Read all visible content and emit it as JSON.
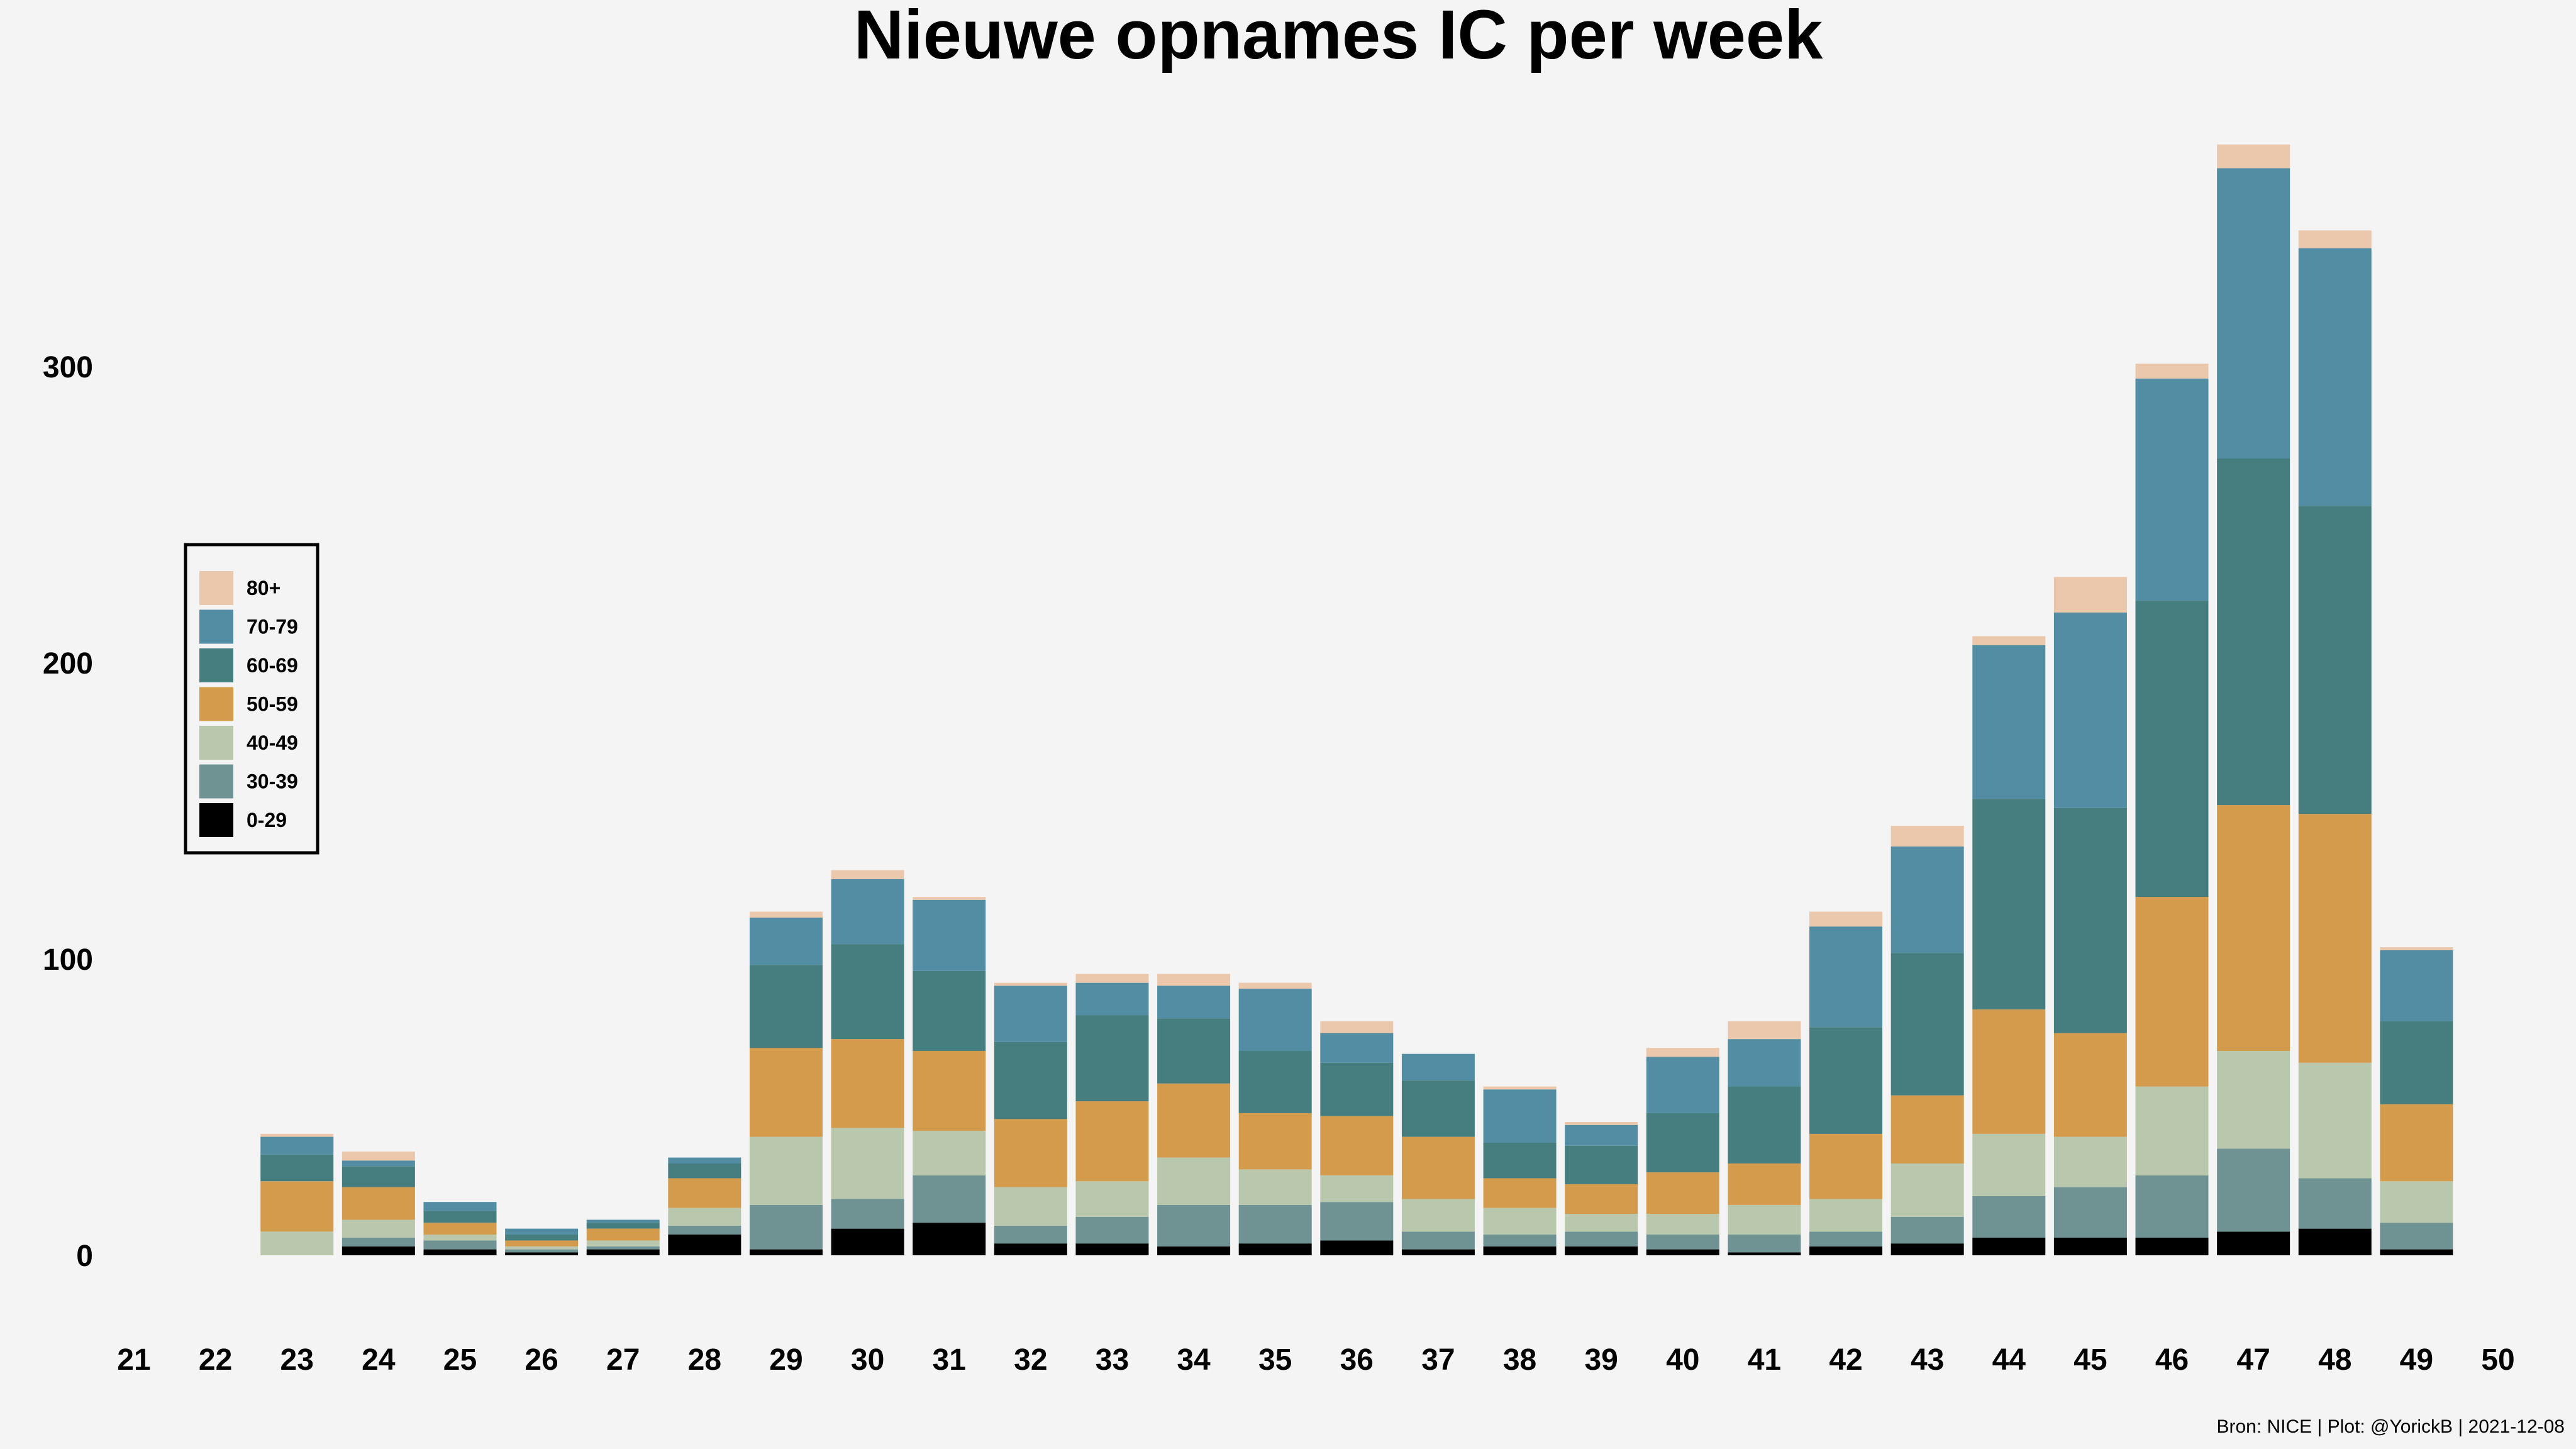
{
  "chart_data": {
    "type": "bar",
    "stacked": true,
    "title": "Nieuwe opnames IC per week",
    "xlabel": "",
    "ylabel": "",
    "x_ticks": [
      "21",
      "22",
      "23",
      "24",
      "25",
      "26",
      "27",
      "28",
      "29",
      "30",
      "31",
      "32",
      "33",
      "34",
      "35",
      "36",
      "37",
      "38",
      "39",
      "40",
      "41",
      "42",
      "43",
      "44",
      "45",
      "46",
      "47",
      "48",
      "49",
      "50"
    ],
    "categories": [
      "23",
      "24",
      "25",
      "26",
      "27",
      "28",
      "29",
      "30",
      "31",
      "32",
      "33",
      "34",
      "35",
      "36",
      "37",
      "38",
      "39",
      "40",
      "41",
      "42",
      "43",
      "44",
      "45",
      "46",
      "47",
      "48",
      "49"
    ],
    "y_ticks": [
      0,
      100,
      200,
      300
    ],
    "ylim": [
      0,
      380
    ],
    "xlim": [
      21,
      50
    ],
    "grid": false,
    "legend_position": "left",
    "series": [
      {
        "name": "0-29",
        "color": "#000000",
        "values": [
          0,
          3,
          2,
          1,
          2,
          7,
          2,
          9,
          11,
          4,
          4,
          3,
          4,
          5,
          2,
          3,
          3,
          2,
          1,
          3,
          4,
          6,
          6,
          6,
          8,
          9,
          2
        ]
      },
      {
        "name": "30-39",
        "color": "#6f9393",
        "values": [
          0,
          3,
          3,
          1,
          1,
          3,
          15,
          10,
          16,
          6,
          9,
          14,
          13,
          13,
          6,
          4,
          5,
          5,
          6,
          5,
          9,
          14,
          17,
          21,
          28,
          17,
          9
        ]
      },
      {
        "name": "40-49",
        "color": "#b9c8ad",
        "values": [
          8,
          6,
          2,
          1,
          2,
          6,
          23,
          24,
          15,
          13,
          12,
          16,
          12,
          9,
          11,
          9,
          6,
          7,
          10,
          11,
          18,
          21,
          17,
          30,
          33,
          39,
          14
        ]
      },
      {
        "name": "50-59",
        "color": "#d49b4d",
        "values": [
          17,
          11,
          4,
          2,
          4,
          10,
          30,
          30,
          27,
          23,
          27,
          25,
          19,
          20,
          21,
          10,
          10,
          14,
          14,
          22,
          23,
          42,
          35,
          64,
          83,
          84,
          26
        ]
      },
      {
        "name": "60-69",
        "color": "#467e7f",
        "values": [
          9,
          7,
          4,
          2,
          2,
          5,
          28,
          32,
          27,
          26,
          29,
          22,
          21,
          18,
          19,
          12,
          13,
          20,
          26,
          36,
          48,
          71,
          76,
          100,
          117,
          104,
          28
        ]
      },
      {
        "name": "70-79",
        "color": "#528da3",
        "values": [
          6,
          2,
          3,
          2,
          1,
          2,
          16,
          22,
          24,
          19,
          11,
          11,
          21,
          10,
          9,
          18,
          7,
          19,
          16,
          34,
          36,
          52,
          66,
          75,
          98,
          87,
          24
        ]
      },
      {
        "name": "80+",
        "color": "#ebc8ac",
        "values": [
          1,
          3,
          0,
          0,
          0,
          0,
          2,
          3,
          1,
          1,
          3,
          4,
          2,
          4,
          0,
          1,
          1,
          3,
          6,
          5,
          7,
          3,
          12,
          5,
          8,
          6,
          1
        ]
      }
    ],
    "caption": "Bron: NICE | Plot: @YorickB |  2021-12-08"
  }
}
